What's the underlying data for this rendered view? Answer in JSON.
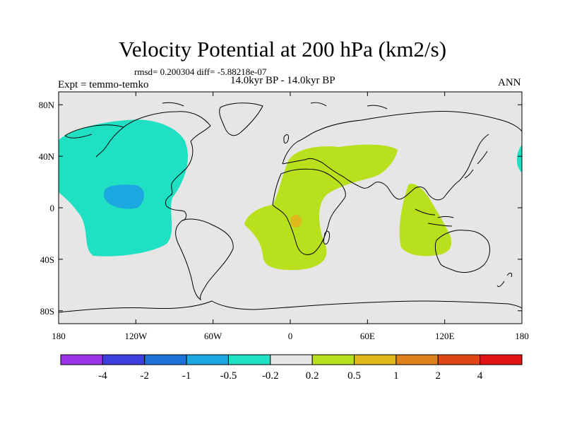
{
  "title": "Velocity Potential at 200 hPa (km2/s)",
  "stats": "rmsd= 0.200304 diff= -5.88218e-07",
  "period": "14.0kyr BP - 14.0kyr BP",
  "experiment": "Expt = temmo-temko",
  "season": "ANN",
  "map": {
    "lon_range": [
      -180,
      180
    ],
    "lat_range": [
      -90,
      90
    ],
    "x_ticks": [
      {
        "lon": -180,
        "label": "180"
      },
      {
        "lon": -120,
        "label": "120W"
      },
      {
        "lon": -60,
        "label": "60W"
      },
      {
        "lon": 0,
        "label": "0"
      },
      {
        "lon": 60,
        "label": "60E"
      },
      {
        "lon": 120,
        "label": "120E"
      },
      {
        "lon": 180,
        "label": "180"
      }
    ],
    "y_ticks": [
      {
        "lat": 80,
        "label": "80N"
      },
      {
        "lat": 40,
        "label": "40N"
      },
      {
        "lat": 0,
        "label": "0"
      },
      {
        "lat": -40,
        "label": "40S"
      },
      {
        "lat": -80,
        "label": "80S"
      }
    ],
    "background_color": "#e6e6e6"
  },
  "colorbar": {
    "colors": [
      "#9a33e8",
      "#3c3ee0",
      "#1c72d8",
      "#1ba8e0",
      "#1fe0c2",
      "#e6e6e6",
      "#b8e01c",
      "#e0b81c",
      "#e08018",
      "#e04514",
      "#e01414"
    ],
    "labels": [
      "-4",
      "-2",
      "-1",
      "-0.5",
      "-0.2",
      "0.2",
      "0.5",
      "1",
      "2",
      "4"
    ]
  },
  "legend_colors": {
    "negative_moderate": "#1fe0c2",
    "negative_strong": "#1ba8e0",
    "positive_moderate": "#b8e01c",
    "positive_strong": "#e0b81c"
  }
}
